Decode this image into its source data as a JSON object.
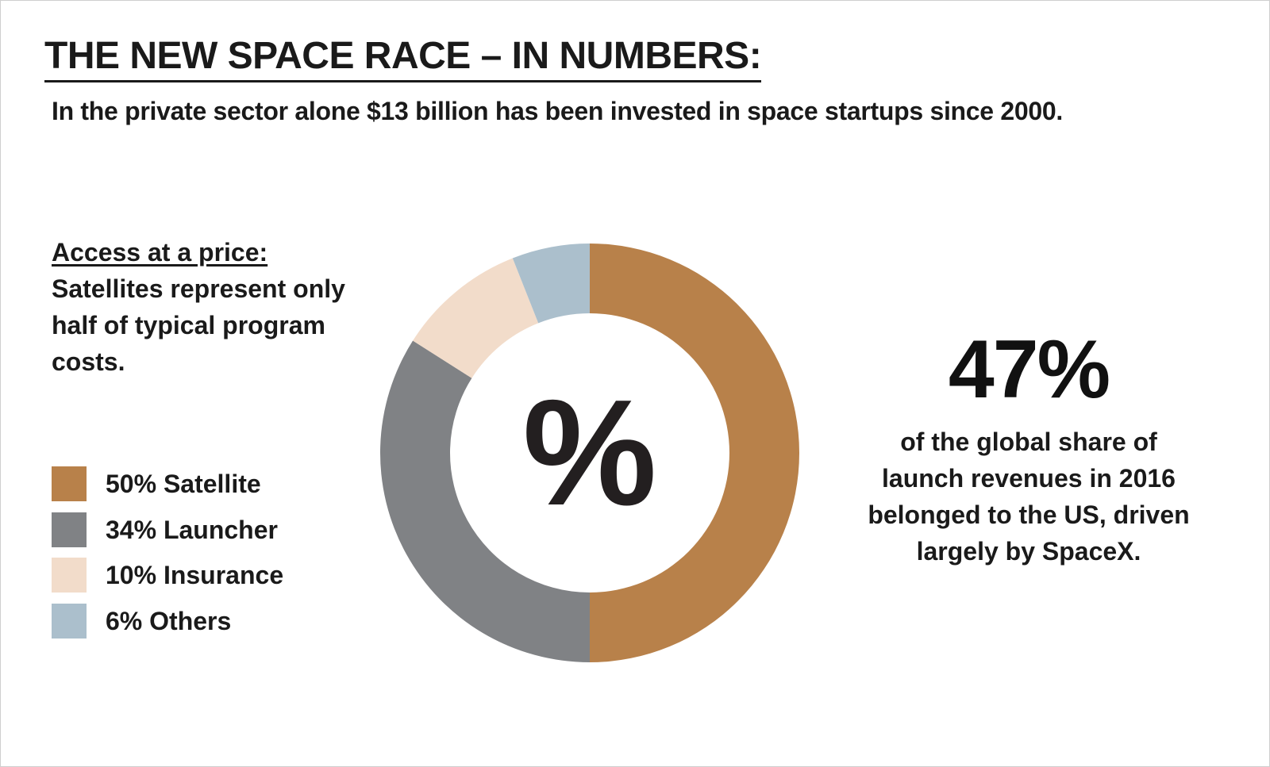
{
  "header": {
    "title": "THE NEW SPACE RACE – IN NUMBERS:",
    "subtitle": "In the private sector alone $13 billion has been invested in space startups since 2000."
  },
  "access": {
    "heading": "Access at a price:",
    "body": "Satellites represent only half of typical program costs."
  },
  "center_symbol": "%",
  "stat": {
    "value": "47%",
    "caption": "of the global share of launch revenues in 2016 belonged to the US, driven largely by SpaceX."
  },
  "chart_data": {
    "type": "pie",
    "style": "donut",
    "start": "top",
    "direction": "clockwise",
    "slices": [
      {
        "label": "50% Satellite",
        "name": "Satellite",
        "value": 50,
        "color": "#b8814a"
      },
      {
        "label": "34% Launcher",
        "name": "Launcher",
        "value": 34,
        "color": "#808285"
      },
      {
        "label": "10% Insurance",
        "name": "Insurance",
        "value": 10,
        "color": "#f2dcca"
      },
      {
        "label": "6% Others",
        "name": "Others",
        "value": 6,
        "color": "#abbfcc"
      }
    ],
    "legend_position": "left"
  }
}
